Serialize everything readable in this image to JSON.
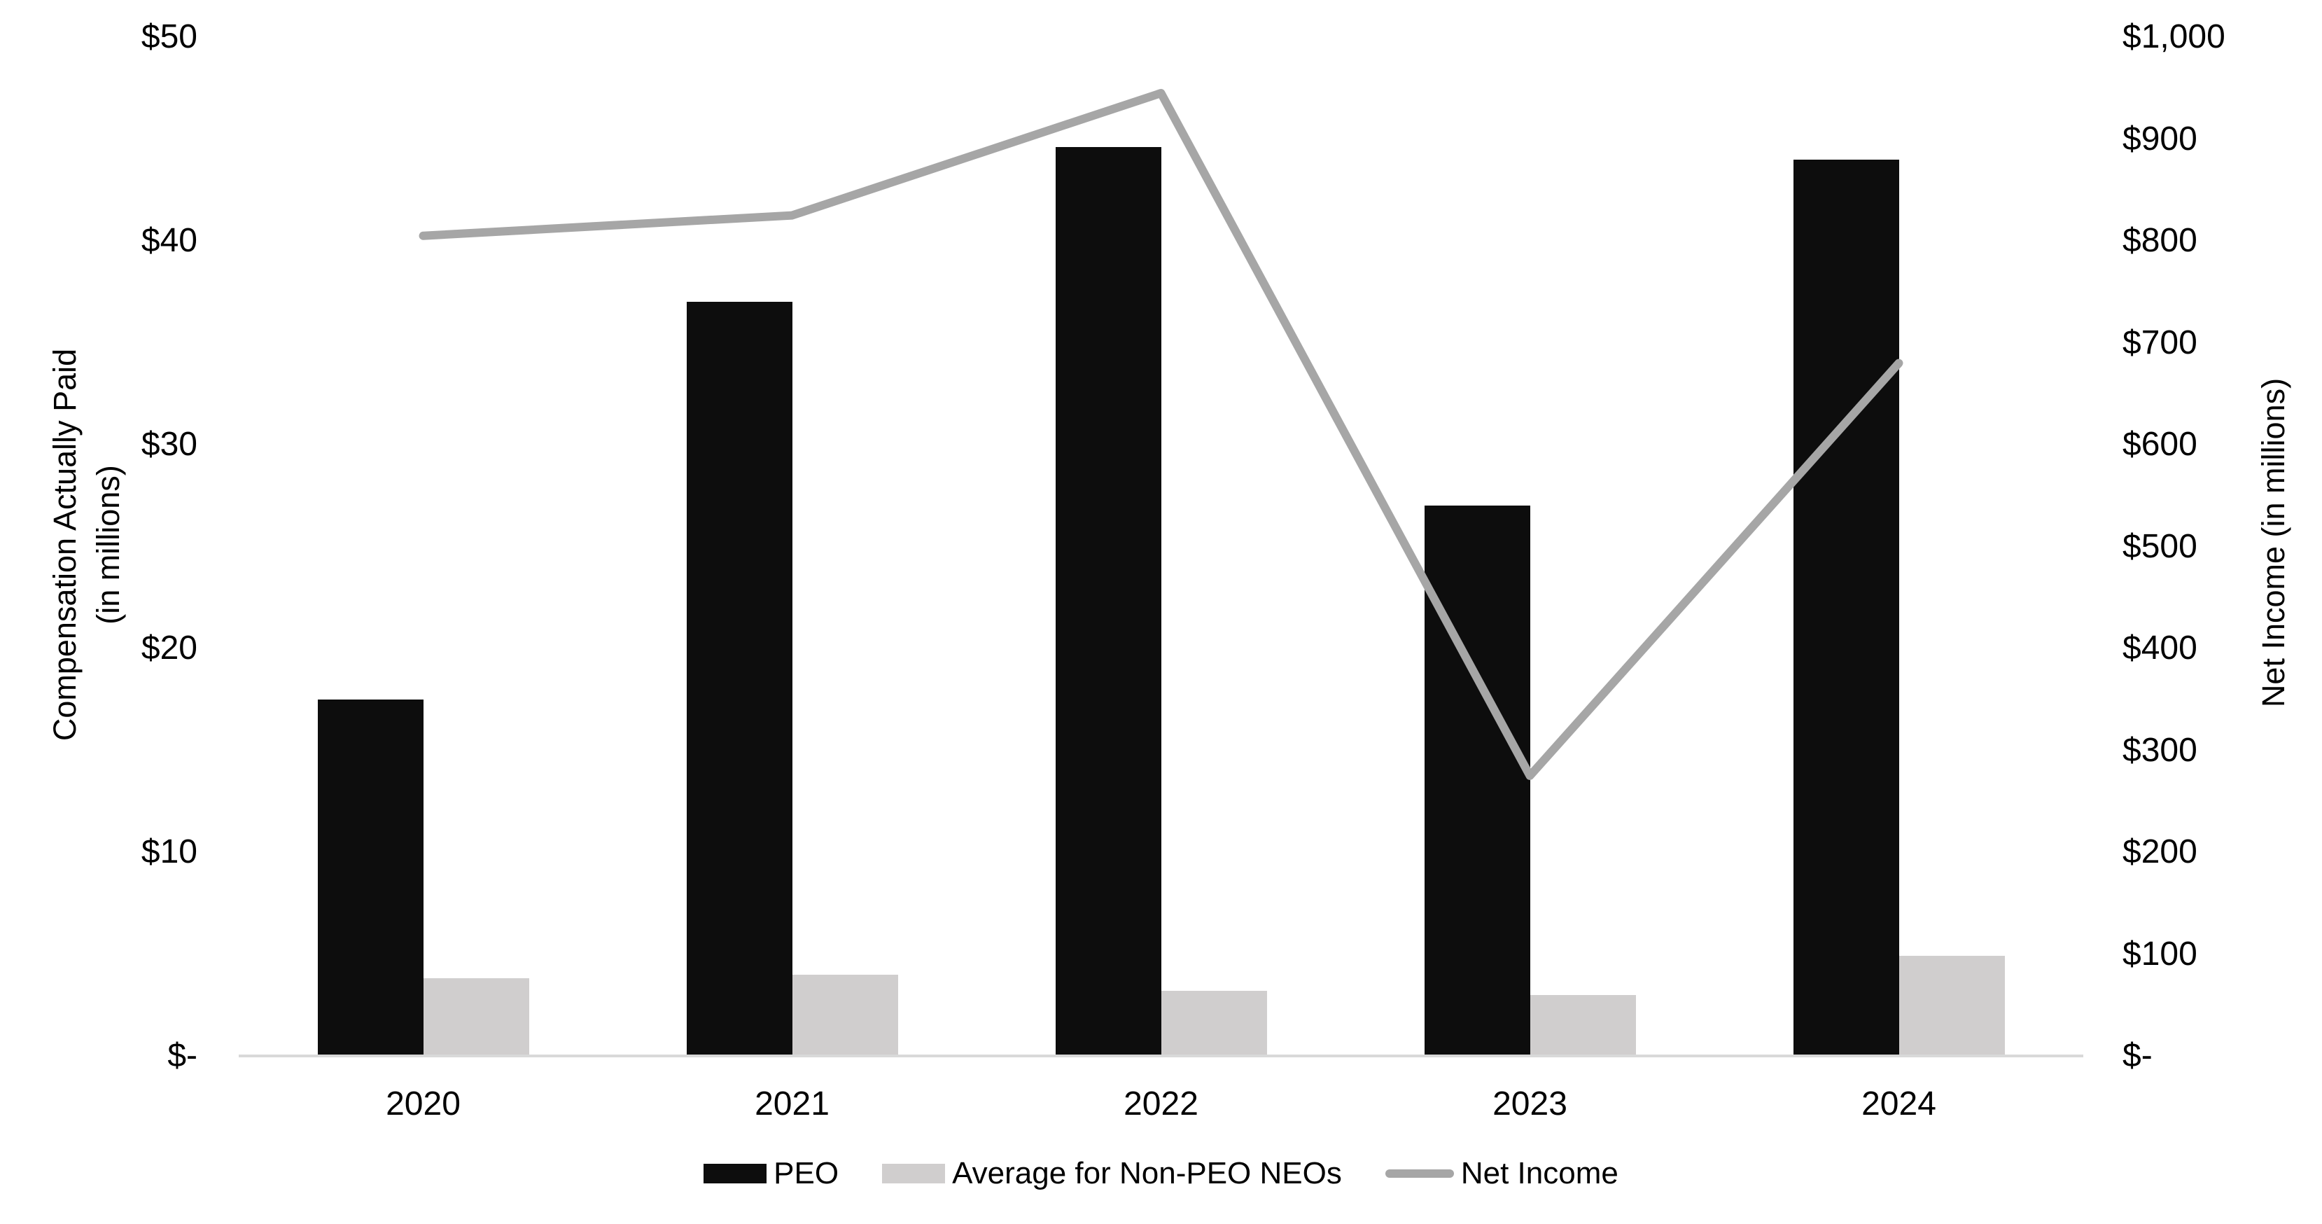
{
  "chart_data": {
    "type": "combo-bar-line",
    "categories": [
      "2020",
      "2021",
      "2022",
      "2023",
      "2024"
    ],
    "series": [
      {
        "name": "PEO",
        "type": "bar",
        "axis": "left",
        "color": "#0d0d0d",
        "values": [
          17.5,
          37.0,
          44.6,
          27.0,
          44.0
        ]
      },
      {
        "name": "Average for Non-PEO NEOs",
        "type": "bar",
        "axis": "left",
        "color": "#d0cece",
        "values": [
          3.8,
          4.0,
          3.2,
          3.0,
          4.9
        ]
      },
      {
        "name": "Net Income",
        "type": "line",
        "axis": "right",
        "color": "#a6a6a6",
        "values": [
          805,
          825,
          945,
          275,
          680
        ]
      }
    ],
    "left_axis": {
      "title_line1": "Compensation Actually Paid",
      "title_line2": "(in millions)",
      "min": 0,
      "max": 50,
      "tick_interval": 10,
      "tick_labels": [
        "$-",
        "$10",
        "$20",
        "$30",
        "$40",
        "$50"
      ]
    },
    "right_axis": {
      "title": "Net Income (in millions)",
      "min": 0,
      "max": 1000,
      "tick_interval": 100,
      "tick_labels": [
        "$-",
        "$100",
        "$200",
        "$300",
        "$400",
        "$500",
        "$600",
        "$700",
        "$800",
        "$900",
        "$1,000"
      ]
    },
    "legend": [
      {
        "label": "PEO",
        "swatch": "bar",
        "color": "#0d0d0d"
      },
      {
        "label": "Average for Non-PEO NEOs",
        "swatch": "bar",
        "color": "#d0cece"
      },
      {
        "label": "Net Income",
        "swatch": "line",
        "color": "#a6a6a6"
      }
    ],
    "gridlines": "off",
    "legend_position": "bottom",
    "baseline_color": "#d9d9d9"
  }
}
